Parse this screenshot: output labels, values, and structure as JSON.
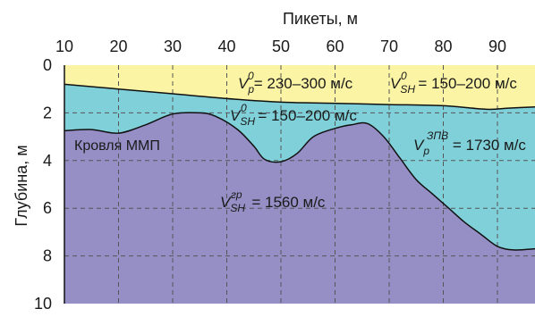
{
  "chart_data": {
    "type": "area",
    "xlabel": "Пикеты, м",
    "ylabel": "Глубина, м",
    "xlim": [
      10,
      97
    ],
    "ylim": [
      0,
      10
    ],
    "y_inverted": true,
    "grid": true,
    "x_ticks": [
      "10",
      "20",
      "30",
      "40",
      "50",
      "60",
      "70",
      "80",
      "90"
    ],
    "y_ticks": [
      "0",
      "2",
      "4",
      "6",
      "8",
      "10"
    ],
    "colors": {
      "upper_layer": "#fbf4a4",
      "middle_layer": "#7fd0d9",
      "lower_layer": "#958fc6"
    },
    "boundaries": {
      "upper_boundary": {
        "x": [
          10,
          20,
          30,
          40,
          50,
          60,
          70,
          80,
          88,
          92,
          97
        ],
        "depth": [
          0.8,
          1.0,
          1.2,
          1.4,
          1.55,
          1.6,
          1.65,
          1.7,
          1.85,
          1.8,
          1.75
        ]
      },
      "permafrost_top": {
        "x": [
          10,
          15,
          20,
          25,
          30,
          35,
          38,
          42,
          45,
          47,
          50,
          53,
          56,
          60,
          63,
          66,
          69,
          72,
          75,
          78,
          81,
          84,
          87,
          90,
          93,
          97
        ],
        "depth": [
          2.75,
          2.7,
          2.85,
          2.5,
          2.05,
          2.0,
          2.15,
          2.7,
          3.4,
          3.95,
          4.05,
          3.7,
          3.0,
          2.65,
          2.5,
          2.45,
          3.0,
          3.9,
          4.8,
          5.4,
          6.0,
          6.6,
          7.1,
          7.6,
          7.75,
          7.7
        ]
      }
    },
    "annotations": {
      "upper_vp": {
        "symbol": "V",
        "sub": "p",
        "sup": "0",
        "value": "= 230–300 м/с"
      },
      "upper_vsh": {
        "symbol": "V",
        "sub": "SH",
        "sup": "0",
        "value": " = 150–200 м/с"
      },
      "middle_vsh": {
        "symbol": "V",
        "sub": "SH",
        "sup": "0",
        "value": " = 150–200 м/с"
      },
      "middle_vp": {
        "symbol": "V",
        "sub": "p",
        "sup": "ЗПВ",
        "value": " = 1730 м/с"
      },
      "lower_vsh": {
        "symbol": "V",
        "sub": "SH",
        "sup": "гр",
        "value": " = 1560 м/с"
      },
      "permafrost_label": "Кровля ММП"
    }
  }
}
